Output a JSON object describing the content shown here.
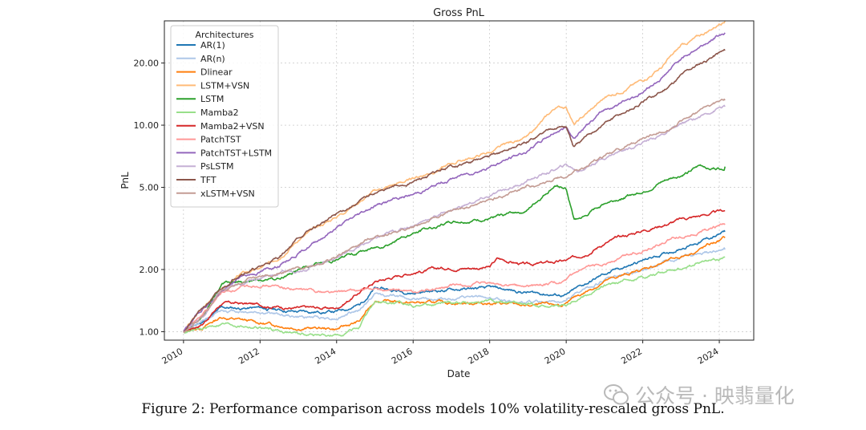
{
  "chart_data": {
    "type": "line",
    "title": "Gross PnL",
    "xlabel": "Date",
    "ylabel": "PnL",
    "yscale": "log",
    "xlim": [
      2009.5,
      2024.9
    ],
    "ylim": [
      0.91,
      32
    ],
    "grid": true,
    "legend_title": "Architectures",
    "legend_position": "upper-left",
    "x_ticks": [
      2010,
      2012,
      2014,
      2016,
      2018,
      2020,
      2022,
      2024
    ],
    "x_tick_labels": [
      "2010",
      "2012",
      "2014",
      "2016",
      "2018",
      "2020",
      "2022",
      "2024"
    ],
    "y_ticks": [
      1,
      2,
      5,
      10,
      20
    ],
    "y_tick_labels": [
      "1.00",
      "2.00",
      "5.00",
      "10.00",
      "20.00"
    ],
    "series": [
      {
        "name": "AR(1)",
        "color": "#1f77b4",
        "x": [
          2010.0,
          2010.5,
          2011.0,
          2012.0,
          2013.0,
          2014.0,
          2014.6,
          2015.0,
          2016.0,
          2017.0,
          2018.0,
          2019.0,
          2020.0,
          2020.3,
          2021.0,
          2022.0,
          2023.0,
          2024.0,
          2024.15
        ],
        "values": [
          1.0,
          1.12,
          1.3,
          1.3,
          1.25,
          1.25,
          1.35,
          1.62,
          1.55,
          1.6,
          1.62,
          1.55,
          1.5,
          1.62,
          1.9,
          2.2,
          2.55,
          2.95,
          3.05
        ]
      },
      {
        "name": "AR(n)",
        "color": "#aec7e8",
        "x": [
          2010.0,
          2010.5,
          2011.0,
          2012.0,
          2013.0,
          2014.0,
          2014.6,
          2015.0,
          2016.0,
          2017.0,
          2018.0,
          2019.0,
          2020.0,
          2020.3,
          2021.0,
          2022.0,
          2023.0,
          2024.0,
          2024.15
        ],
        "values": [
          1.0,
          1.1,
          1.27,
          1.25,
          1.18,
          1.17,
          1.28,
          1.52,
          1.45,
          1.45,
          1.45,
          1.38,
          1.4,
          1.52,
          1.78,
          2.0,
          2.3,
          2.45,
          2.5
        ]
      },
      {
        "name": "Dlinear",
        "color": "#ff7f0e",
        "x": [
          2010.0,
          2010.5,
          2011.0,
          2012.0,
          2013.0,
          2014.0,
          2014.6,
          2015.0,
          2016.0,
          2017.0,
          2018.0,
          2019.0,
          2020.0,
          2020.3,
          2021.0,
          2022.0,
          2023.0,
          2024.0,
          2024.15
        ],
        "values": [
          1.0,
          1.05,
          1.18,
          1.1,
          1.05,
          1.03,
          1.12,
          1.42,
          1.38,
          1.38,
          1.38,
          1.33,
          1.35,
          1.48,
          1.75,
          2.0,
          2.3,
          2.75,
          2.85
        ]
      },
      {
        "name": "LSTM+VSN",
        "color": "#ffbb78",
        "x": [
          2010.0,
          2010.5,
          2011.0,
          2011.5,
          2012.0,
          2012.5,
          2013.0,
          2014.0,
          2015.0,
          2016.0,
          2017.0,
          2018.0,
          2019.0,
          2019.7,
          2020.0,
          2020.2,
          2020.5,
          2021.0,
          2022.0,
          2022.5,
          2023.0,
          2023.5,
          2024.0,
          2024.15
        ],
        "values": [
          1.0,
          1.3,
          1.6,
          1.9,
          2.0,
          2.3,
          2.8,
          3.6,
          4.8,
          5.5,
          6.5,
          7.4,
          8.8,
          12.0,
          12.3,
          10.0,
          11.2,
          13.5,
          16.5,
          19.0,
          24.0,
          27.0,
          31.0,
          32.0
        ]
      },
      {
        "name": "LSTM",
        "color": "#2ca02c",
        "x": [
          2010.0,
          2010.5,
          2011.0,
          2011.5,
          2012.0,
          2012.5,
          2013.0,
          2014.0,
          2015.0,
          2016.0,
          2017.0,
          2018.0,
          2019.0,
          2019.7,
          2020.0,
          2020.2,
          2020.5,
          2021.0,
          2022.0,
          2022.5,
          2023.0,
          2023.5,
          2024.0,
          2024.15
        ],
        "values": [
          1.0,
          1.2,
          1.7,
          1.75,
          1.75,
          1.8,
          2.0,
          2.25,
          2.55,
          3.0,
          3.4,
          3.5,
          3.9,
          5.1,
          5.0,
          3.5,
          3.6,
          4.2,
          4.8,
          5.3,
          5.7,
          6.3,
          6.2,
          6.3
        ]
      },
      {
        "name": "Mamba2",
        "color": "#98df8a",
        "x": [
          2010.0,
          2010.5,
          2011.0,
          2012.0,
          2013.0,
          2014.0,
          2014.6,
          2015.0,
          2016.0,
          2017.0,
          2018.0,
          2019.0,
          2020.0,
          2020.3,
          2021.0,
          2022.0,
          2023.0,
          2024.0,
          2024.15
        ],
        "values": [
          1.0,
          1.02,
          1.1,
          1.05,
          0.98,
          0.95,
          1.05,
          1.38,
          1.35,
          1.38,
          1.4,
          1.33,
          1.35,
          1.45,
          1.65,
          1.85,
          2.05,
          2.25,
          2.3
        ]
      },
      {
        "name": "Mamba2+VSN",
        "color": "#d62728",
        "x": [
          2010.0,
          2010.5,
          2011.0,
          2012.0,
          2013.0,
          2014.0,
          2015.0,
          2016.0,
          2017.0,
          2018.0,
          2018.2,
          2019.0,
          2020.0,
          2020.3,
          2021.0,
          2022.0,
          2023.0,
          2024.0,
          2024.15
        ],
        "values": [
          1.0,
          1.1,
          1.38,
          1.35,
          1.3,
          1.3,
          1.75,
          1.95,
          2.05,
          2.05,
          2.25,
          2.1,
          2.2,
          2.3,
          2.7,
          3.1,
          3.5,
          3.8,
          3.85
        ]
      },
      {
        "name": "PatchTST",
        "color": "#ff9896",
        "x": [
          2010.0,
          2010.5,
          2011.0,
          2012.0,
          2012.5,
          2013.0,
          2014.0,
          2015.0,
          2016.0,
          2017.0,
          2018.0,
          2019.0,
          2020.0,
          2020.3,
          2021.0,
          2022.0,
          2023.0,
          2024.0,
          2024.15
        ],
        "values": [
          1.0,
          1.2,
          1.55,
          1.7,
          1.65,
          1.6,
          1.55,
          1.6,
          1.55,
          1.65,
          1.7,
          1.65,
          1.75,
          1.9,
          2.15,
          2.5,
          2.9,
          3.25,
          3.3
        ]
      },
      {
        "name": "PatchTST+LSTM",
        "color": "#9467bd",
        "x": [
          2010.0,
          2010.5,
          2011.0,
          2011.5,
          2012.0,
          2012.5,
          2013.0,
          2014.0,
          2015.0,
          2016.0,
          2017.0,
          2018.0,
          2019.0,
          2019.7,
          2020.0,
          2020.2,
          2020.5,
          2021.0,
          2022.0,
          2022.5,
          2023.0,
          2023.5,
          2024.0,
          2024.15
        ],
        "values": [
          1.0,
          1.3,
          1.55,
          1.85,
          1.95,
          2.1,
          2.4,
          3.2,
          4.1,
          4.6,
          5.5,
          6.3,
          7.5,
          9.3,
          9.8,
          8.7,
          9.8,
          11.8,
          14.5,
          17.0,
          21.0,
          24.0,
          27.5,
          28.0
        ]
      },
      {
        "name": "PsLSTM",
        "color": "#c5b0d5",
        "x": [
          2010.0,
          2010.5,
          2011.0,
          2012.0,
          2013.0,
          2014.0,
          2015.0,
          2016.0,
          2017.0,
          2018.0,
          2019.0,
          2020.0,
          2020.3,
          2021.0,
          2022.0,
          2022.5,
          2023.0,
          2023.5,
          2024.0,
          2024.15
        ],
        "values": [
          1.0,
          1.2,
          1.6,
          1.8,
          2.0,
          2.3,
          2.8,
          3.3,
          3.9,
          4.5,
          5.4,
          6.4,
          6.0,
          7.0,
          8.3,
          9.0,
          10.0,
          11.0,
          12.2,
          12.3
        ]
      },
      {
        "name": "TFT",
        "color": "#8c564b",
        "x": [
          2010.0,
          2010.5,
          2011.0,
          2011.5,
          2012.0,
          2012.5,
          2013.0,
          2014.0,
          2015.0,
          2016.0,
          2017.0,
          2018.0,
          2019.0,
          2019.7,
          2020.0,
          2020.2,
          2020.5,
          2021.0,
          2022.0,
          2022.5,
          2023.0,
          2023.5,
          2024.0,
          2024.15
        ],
        "values": [
          1.0,
          1.3,
          1.6,
          1.95,
          2.05,
          2.3,
          2.85,
          3.7,
          4.7,
          5.3,
          6.3,
          7.0,
          8.3,
          9.9,
          9.9,
          7.8,
          8.6,
          10.2,
          12.8,
          14.5,
          17.5,
          20.0,
          22.5,
          23.0
        ]
      },
      {
        "name": "xLSTM+VSN",
        "color": "#c49c94",
        "x": [
          2010.0,
          2010.5,
          2011.0,
          2012.0,
          2013.0,
          2014.0,
          2015.0,
          2016.0,
          2017.0,
          2018.0,
          2019.0,
          2019.8,
          2020.0,
          2020.3,
          2021.0,
          2022.0,
          2022.5,
          2023.0,
          2023.5,
          2024.0,
          2024.15
        ],
        "values": [
          1.0,
          1.2,
          1.6,
          1.85,
          2.0,
          2.3,
          2.9,
          3.2,
          3.8,
          4.3,
          5.0,
          5.6,
          5.5,
          6.0,
          7.1,
          8.6,
          9.3,
          10.5,
          11.8,
          13.0,
          13.2
        ]
      }
    ]
  },
  "caption": "Figure 2: Performance comparison across models 10% volatility-rescaled gross PnL.",
  "watermark": {
    "text": "公众号 · 映翡量化",
    "icon": "wechat-icon"
  }
}
